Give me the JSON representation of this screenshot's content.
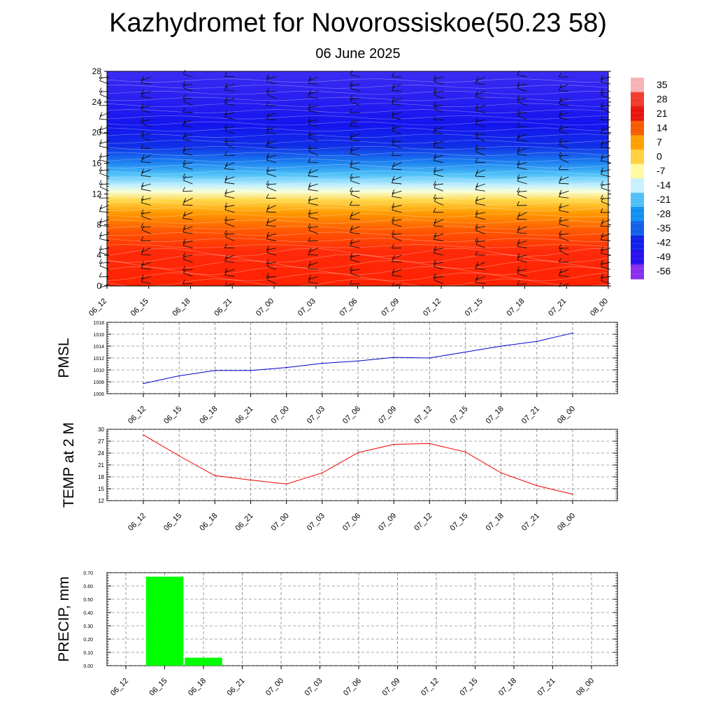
{
  "title": "Kazhydromet for Novorossiskoe(50.23 58)",
  "subtitle": "06 June 2025",
  "time_labels": [
    "06_12",
    "06_15",
    "06_18",
    "06_21",
    "07_00",
    "07_03",
    "07_06",
    "07_09",
    "07_12",
    "07_15",
    "07_18",
    "07_21",
    "08_00"
  ],
  "chart_data": [
    {
      "type": "heatmap",
      "yticks": [
        0,
        4,
        8,
        12,
        16,
        20,
        24,
        28
      ],
      "ylim": [
        0,
        28
      ],
      "x": [
        "06_12",
        "06_15",
        "06_18",
        "06_21",
        "07_00",
        "07_03",
        "07_06",
        "07_09",
        "07_12",
        "07_15",
        "07_18",
        "07_21",
        "08_00"
      ],
      "colorbar": {
        "labels": [
          "35",
          "28",
          "21",
          "14",
          "7",
          "0",
          "-7",
          "-14",
          "-21",
          "-28",
          "-35",
          "-42",
          "-49",
          "-56"
        ],
        "colors": [
          "#f7b2b6",
          "#f03c2c",
          "#e8140a",
          "#f55a00",
          "#ffa000",
          "#ffd040",
          "#fffaa0",
          "#c8f0ff",
          "#50c0f8",
          "#1090f0",
          "#1060e8",
          "#1020e8",
          "#2810f0",
          "#8a2ff0"
        ]
      },
      "overlay": "wind barbs"
    },
    {
      "type": "line",
      "ylabel": "PMSL",
      "ylim": [
        1006,
        1018
      ],
      "yticks": [
        1006,
        1008,
        1010,
        1012,
        1014,
        1016,
        1018
      ],
      "x": [
        "06_12",
        "06_15",
        "06_18",
        "06_21",
        "07_00",
        "07_03",
        "07_06",
        "07_09",
        "07_12",
        "07_15",
        "07_18",
        "07_21",
        "08_00"
      ],
      "series": [
        {
          "values": [
            1007.7,
            1009.0,
            1009.9,
            1009.9,
            1010.4,
            1011.1,
            1011.5,
            1012.1,
            1012.0,
            1013.0,
            1014.0,
            1014.8,
            1016.2
          ],
          "color": "#0000cc"
        }
      ]
    },
    {
      "type": "line",
      "ylabel": "TEMP at 2 M",
      "ylim": [
        12,
        30
      ],
      "yticks": [
        12,
        15,
        18,
        21,
        24,
        27,
        30
      ],
      "x": [
        "06_12",
        "06_15",
        "06_18",
        "06_21",
        "07_00",
        "07_03",
        "07_06",
        "07_09",
        "07_12",
        "07_15",
        "07_18",
        "07_21",
        "08_00"
      ],
      "series": [
        {
          "values": [
            28.6,
            23.3,
            18.3,
            17.2,
            16.2,
            19.0,
            24.1,
            26.2,
            26.4,
            24.3,
            19.0,
            15.8,
            13.6
          ],
          "color": "#ee0000"
        }
      ]
    },
    {
      "type": "bar",
      "ylabel": "PRECIP, mm",
      "ylim": [
        0,
        0.7
      ],
      "yticks": [
        "0.00",
        "0.10",
        "0.20",
        "0.30",
        "0.40",
        "0.50",
        "0.60",
        "0.70"
      ],
      "categories": [
        "06_12",
        "06_15",
        "06_18",
        "06_21",
        "07_00",
        "07_03",
        "07_06",
        "07_09",
        "07_12",
        "07_15",
        "07_18",
        "07_21",
        "08_00"
      ],
      "values": [
        0,
        0.67,
        0.06,
        0,
        0,
        0,
        0,
        0,
        0,
        0,
        0,
        0,
        0
      ],
      "color": "#00ff00"
    }
  ]
}
